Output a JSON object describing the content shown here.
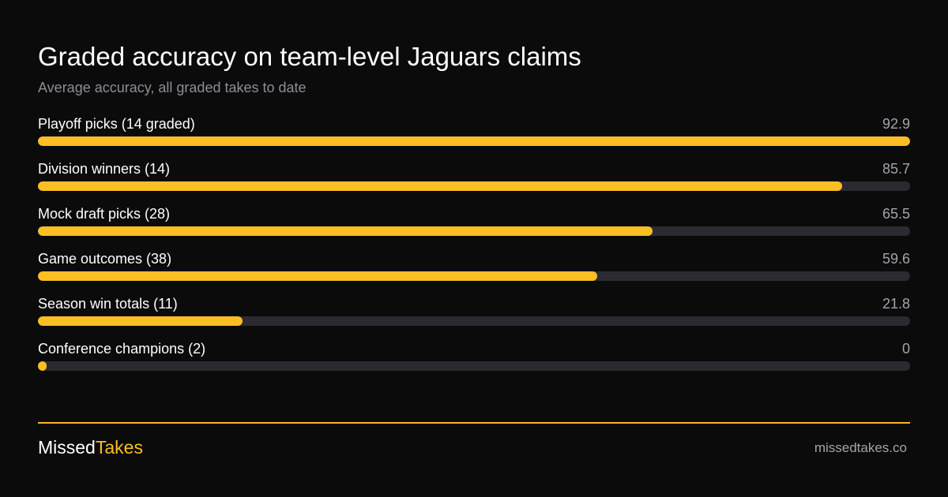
{
  "header": {
    "title": "Graded accuracy on team-level Jaguars claims",
    "subtitle": "Average accuracy, all graded takes to date"
  },
  "colors": {
    "background": "#0b0b0c",
    "bar_fill": "#fbbf24",
    "bar_track": "#2c2a31",
    "accent": "#fbbf24",
    "muted_text": "#a3a3ab"
  },
  "chart_data": {
    "type": "bar",
    "orientation": "horizontal",
    "title": "Graded accuracy on team-level Jaguars claims",
    "subtitle": "Average accuracy, all graded takes to date",
    "categories": [
      "Playoff picks (14 graded)",
      "Division winners (14)",
      "Mock draft picks (28)",
      "Game outcomes (38)",
      "Season win totals (11)",
      "Conference champions (2)"
    ],
    "values": [
      92.9,
      85.7,
      65.5,
      59.6,
      21.8,
      0
    ],
    "value_labels": [
      "92.9",
      "85.7",
      "65.5",
      "59.6",
      "21.8",
      "0"
    ],
    "xlim": [
      0,
      92.9
    ],
    "grid": false,
    "legend": "none"
  },
  "footer": {
    "brand_part1": "Missed",
    "brand_part2": "Takes",
    "site": "missedtakes.co"
  }
}
